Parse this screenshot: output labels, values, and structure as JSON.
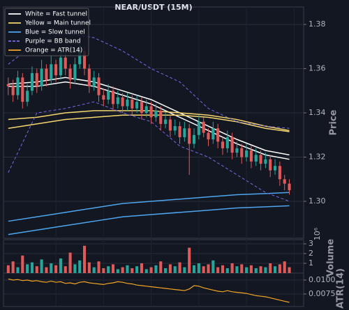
{
  "chart_data": {
    "type": "candlestick",
    "title": "NEAR/USDT (15M)",
    "y_label": "Price",
    "volume_label": "Volume",
    "atr_label": "ATR(14)",
    "volume_offset_label": "10⁶",
    "xlim": [
      -1,
      62
    ],
    "ylim": [
      1.2833,
      1.3879
    ],
    "yticks": [
      {
        "value": 1.3,
        "label": "1.30"
      },
      1.32,
      1.34,
      1.36,
      1.38
    ],
    "grid": true,
    "legend_position": "upper left",
    "up_color": "#26a69a",
    "down_color": "#e05a5a",
    "candles": {
      "open": [
        1.353,
        1.352,
        1.348,
        1.356,
        1.345,
        1.35,
        1.358,
        1.352,
        1.36,
        1.355,
        1.362,
        1.357,
        1.365,
        1.36,
        1.355,
        1.362,
        1.368,
        1.36,
        1.352,
        1.356,
        1.348,
        1.346,
        1.35,
        1.344,
        1.347,
        1.343,
        1.346,
        1.342,
        1.345,
        1.34,
        1.343,
        1.338,
        1.341,
        1.335,
        1.337,
        1.332,
        1.334,
        1.329,
        1.333,
        1.326,
        1.33,
        1.336,
        1.331,
        1.328,
        1.333,
        1.327,
        1.324,
        1.329,
        1.322,
        1.324,
        1.32,
        1.323,
        1.318,
        1.321,
        1.317,
        1.319,
        1.314,
        1.316,
        1.31,
        1.308
      ],
      "high": [
        1.356,
        1.355,
        1.359,
        1.358,
        1.353,
        1.361,
        1.36,
        1.364,
        1.362,
        1.366,
        1.364,
        1.369,
        1.367,
        1.362,
        1.365,
        1.372,
        1.37,
        1.362,
        1.359,
        1.358,
        1.351,
        1.353,
        1.352,
        1.35,
        1.349,
        1.349,
        1.348,
        1.348,
        1.347,
        1.346,
        1.345,
        1.344,
        1.343,
        1.34,
        1.339,
        1.337,
        1.336,
        1.336,
        1.335,
        1.333,
        1.339,
        1.338,
        1.333,
        1.336,
        1.335,
        1.329,
        1.332,
        1.331,
        1.327,
        1.326,
        1.326,
        1.325,
        1.324,
        1.323,
        1.322,
        1.321,
        1.319,
        1.318,
        1.312,
        1.31
      ],
      "low": [
        1.348,
        1.345,
        1.346,
        1.342,
        1.343,
        1.348,
        1.349,
        1.35,
        1.352,
        1.353,
        1.354,
        1.355,
        1.357,
        1.351,
        1.353,
        1.36,
        1.357,
        1.349,
        1.35,
        1.345,
        1.343,
        1.344,
        1.341,
        1.342,
        1.34,
        1.341,
        1.339,
        1.34,
        1.337,
        1.338,
        1.335,
        1.336,
        1.332,
        1.333,
        1.329,
        1.33,
        1.326,
        1.327,
        1.312,
        1.324,
        1.328,
        1.329,
        1.325,
        1.326,
        1.324,
        1.321,
        1.322,
        1.319,
        1.32,
        1.317,
        1.318,
        1.315,
        1.316,
        1.314,
        1.315,
        1.311,
        1.312,
        1.307,
        1.305,
        1.303
      ],
      "close": [
        1.352,
        1.348,
        1.356,
        1.345,
        1.35,
        1.358,
        1.352,
        1.36,
        1.355,
        1.362,
        1.357,
        1.365,
        1.36,
        1.355,
        1.362,
        1.368,
        1.36,
        1.352,
        1.356,
        1.348,
        1.346,
        1.35,
        1.344,
        1.347,
        1.343,
        1.346,
        1.342,
        1.345,
        1.34,
        1.343,
        1.338,
        1.341,
        1.335,
        1.337,
        1.332,
        1.334,
        1.329,
        1.333,
        1.326,
        1.33,
        1.336,
        1.331,
        1.328,
        1.333,
        1.327,
        1.324,
        1.329,
        1.322,
        1.324,
        1.32,
        1.323,
        1.318,
        1.321,
        1.317,
        1.319,
        1.314,
        1.316,
        1.31,
        1.308,
        1.305
      ]
    },
    "overlays": [
      {
        "legend": "White = Fast tunnel",
        "color": "#ffffff",
        "dashed": false,
        "lines": [
          {
            "x": [
              0,
              6,
              12,
              18,
              24,
              30,
              36,
              42,
              48,
              54,
              59
            ],
            "values": [
              1.353,
              1.354,
              1.356,
              1.354,
              1.35,
              1.346,
              1.34,
              1.334,
              1.328,
              1.323,
              1.321
            ]
          },
          {
            "x": [
              0,
              6,
              12,
              18,
              24,
              30,
              36,
              42,
              48,
              54,
              59
            ],
            "values": [
              1.352,
              1.352,
              1.354,
              1.352,
              1.348,
              1.344,
              1.338,
              1.332,
              1.326,
              1.321,
              1.319
            ]
          }
        ]
      },
      {
        "legend": "Yellow = Main tunnel",
        "color": "#f5d76e",
        "dashed": false,
        "lines": [
          {
            "x": [
              0,
              6,
              12,
              18,
              24,
              30,
              36,
              42,
              48,
              54,
              59
            ],
            "values": [
              1.337,
              1.338,
              1.34,
              1.341,
              1.341,
              1.341,
              1.34,
              1.339,
              1.337,
              1.334,
              1.332
            ]
          },
          {
            "x": [
              0,
              6,
              12,
              18,
              24,
              30,
              36,
              42,
              48,
              54,
              59
            ],
            "values": [
              1.333,
              1.335,
              1.337,
              1.338,
              1.339,
              1.339,
              1.339,
              1.338,
              1.336,
              1.333,
              1.3315
            ]
          }
        ]
      },
      {
        "legend": "Blue = Slow tunnel",
        "color": "#4ea6f0",
        "dashed": false,
        "lines": [
          {
            "x": [
              0,
              6,
              12,
              18,
              24,
              30,
              36,
              42,
              48,
              54,
              59
            ],
            "values": [
              1.291,
              1.293,
              1.295,
              1.297,
              1.299,
              1.3,
              1.301,
              1.302,
              1.303,
              1.3035,
              1.304
            ]
          },
          {
            "x": [
              0,
              6,
              12,
              18,
              24,
              30,
              36,
              42,
              48,
              54,
              59
            ],
            "values": [
              1.285,
              1.287,
              1.289,
              1.291,
              1.293,
              1.294,
              1.295,
              1.296,
              1.297,
              1.2975,
              1.298
            ]
          }
        ]
      },
      {
        "legend": "Purple = BB band",
        "color": "#7b68ee",
        "dashed": true,
        "lines": [
          {
            "x": [
              0,
              6,
              12,
              18,
              24,
              30,
              36,
              42,
              48,
              54,
              59
            ],
            "values": [
              1.362,
              1.372,
              1.376,
              1.374,
              1.368,
              1.36,
              1.354,
              1.342,
              1.336,
              1.334,
              1.333
            ]
          },
          {
            "x": [
              0,
              6,
              12,
              18,
              24,
              30,
              36,
              42,
              48,
              54,
              59
            ],
            "values": [
              1.313,
              1.34,
              1.342,
              1.345,
              1.34,
              1.336,
              1.325,
              1.32,
              1.312,
              1.304,
              1.3
            ]
          }
        ]
      }
    ],
    "volume": {
      "values": [
        0.8,
        1.2,
        0.6,
        1.8,
        0.9,
        1.1,
        0.7,
        1.4,
        0.6,
        1.0,
        0.8,
        1.5,
        0.7,
        2.1,
        0.9,
        1.3,
        2.8,
        1.1,
        0.6,
        1.2,
        0.5,
        0.7,
        0.9,
        0.4,
        0.6,
        0.8,
        0.5,
        0.7,
        1.0,
        0.4,
        0.6,
        0.8,
        1.2,
        0.5,
        0.9,
        0.7,
        1.1,
        0.6,
        2.6,
        0.8,
        1.0,
        0.7,
        0.9,
        1.3,
        0.6,
        0.8,
        0.5,
        1.0,
        0.7,
        0.9,
        0.6,
        0.8,
        0.5,
        0.7,
        0.6,
        1.0,
        0.7,
        0.9,
        1.2,
        0.6
      ],
      "ylim": [
        0,
        3.43
      ],
      "yticks": [
        1,
        2,
        3
      ]
    },
    "atr": {
      "legend": "Orange = ATR(14)",
      "color": "#f5a623",
      "values": [
        0.0102,
        0.01,
        0.0101,
        0.0099,
        0.01,
        0.0098,
        0.0099,
        0.0097,
        0.0096,
        0.0098,
        0.0096,
        0.0097,
        0.0094,
        0.0095,
        0.0093,
        0.0096,
        0.0097,
        0.0095,
        0.0094,
        0.0093,
        0.0092,
        0.0094,
        0.0095,
        0.0097,
        0.0096,
        0.0094,
        0.0093,
        0.0091,
        0.009,
        0.0089,
        0.0088,
        0.0087,
        0.0086,
        0.0085,
        0.0084,
        0.0083,
        0.0082,
        0.0081,
        0.0084,
        0.009,
        0.0089,
        0.0086,
        0.0084,
        0.0082,
        0.008,
        0.0079,
        0.0081,
        0.0079,
        0.0078,
        0.0077,
        0.0076,
        0.0074,
        0.0072,
        0.0071,
        0.007,
        0.0068,
        0.0066,
        0.0064,
        0.0062,
        0.006
      ],
      "ylim": [
        0.00525,
        0.01125
      ],
      "yticks": [
        0.0075,
        {
          "value": 0.01,
          "label": "0.0100"
        }
      ]
    }
  }
}
